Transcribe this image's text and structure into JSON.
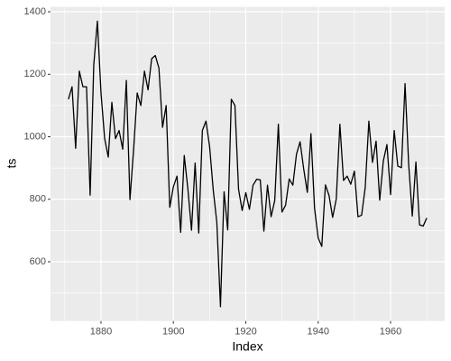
{
  "chart_data": {
    "type": "line",
    "x_label": "Index",
    "y_label": "ts",
    "x": [
      1871,
      1872,
      1873,
      1874,
      1875,
      1876,
      1877,
      1878,
      1879,
      1880,
      1881,
      1882,
      1883,
      1884,
      1885,
      1886,
      1887,
      1888,
      1889,
      1890,
      1891,
      1892,
      1893,
      1894,
      1895,
      1896,
      1897,
      1898,
      1899,
      1900,
      1901,
      1902,
      1903,
      1904,
      1905,
      1906,
      1907,
      1908,
      1909,
      1910,
      1911,
      1912,
      1913,
      1914,
      1915,
      1916,
      1917,
      1918,
      1919,
      1920,
      1921,
      1922,
      1923,
      1924,
      1925,
      1926,
      1927,
      1928,
      1929,
      1930,
      1931,
      1932,
      1933,
      1934,
      1935,
      1936,
      1937,
      1938,
      1939,
      1940,
      1941,
      1942,
      1943,
      1944,
      1945,
      1946,
      1947,
      1948,
      1949,
      1950,
      1951,
      1952,
      1953,
      1954,
      1955,
      1956,
      1957,
      1958,
      1959,
      1960,
      1961,
      1962,
      1963,
      1964,
      1965,
      1966,
      1967,
      1968,
      1969,
      1970
    ],
    "series": [
      {
        "color": "#000000",
        "values": [
          1120,
          1160,
          963,
          1210,
          1160,
          1160,
          813,
          1230,
          1370,
          1140,
          995,
          935,
          1110,
          994,
          1020,
          960,
          1180,
          799,
          958,
          1140,
          1100,
          1210,
          1150,
          1250,
          1260,
          1220,
          1030,
          1100,
          774,
          840,
          874,
          694,
          940,
          833,
          701,
          916,
          692,
          1020,
          1050,
          969,
          831,
          726,
          456,
          824,
          702,
          1120,
          1100,
          832,
          764,
          821,
          768,
          845,
          864,
          862,
          698,
          845,
          744,
          796,
          1040,
          759,
          781,
          865,
          845,
          944,
          984,
          897,
          822,
          1010,
          771,
          676,
          649,
          846,
          812,
          742,
          801,
          1040,
          860,
          874,
          848,
          890,
          744,
          749,
          838,
          1050,
          918,
          986,
          797,
          923,
          975,
          815,
          1020,
          906,
          901,
          1170,
          912,
          746,
          919,
          718,
          714,
          740
        ]
      }
    ],
    "xlim": [
      1866.05,
      1974.95
    ],
    "xticks": [
      1880,
      1900,
      1920,
      1940,
      1960
    ],
    "xticks_minor": [
      1870,
      1890,
      1910,
      1930,
      1950,
      1970
    ],
    "ylim": [
      410.3,
      1415.7
    ],
    "yticks": [
      600,
      800,
      1000,
      1200,
      1400
    ],
    "yticks_minor": [
      500,
      700,
      900,
      1100,
      1300
    ],
    "grid": true
  }
}
